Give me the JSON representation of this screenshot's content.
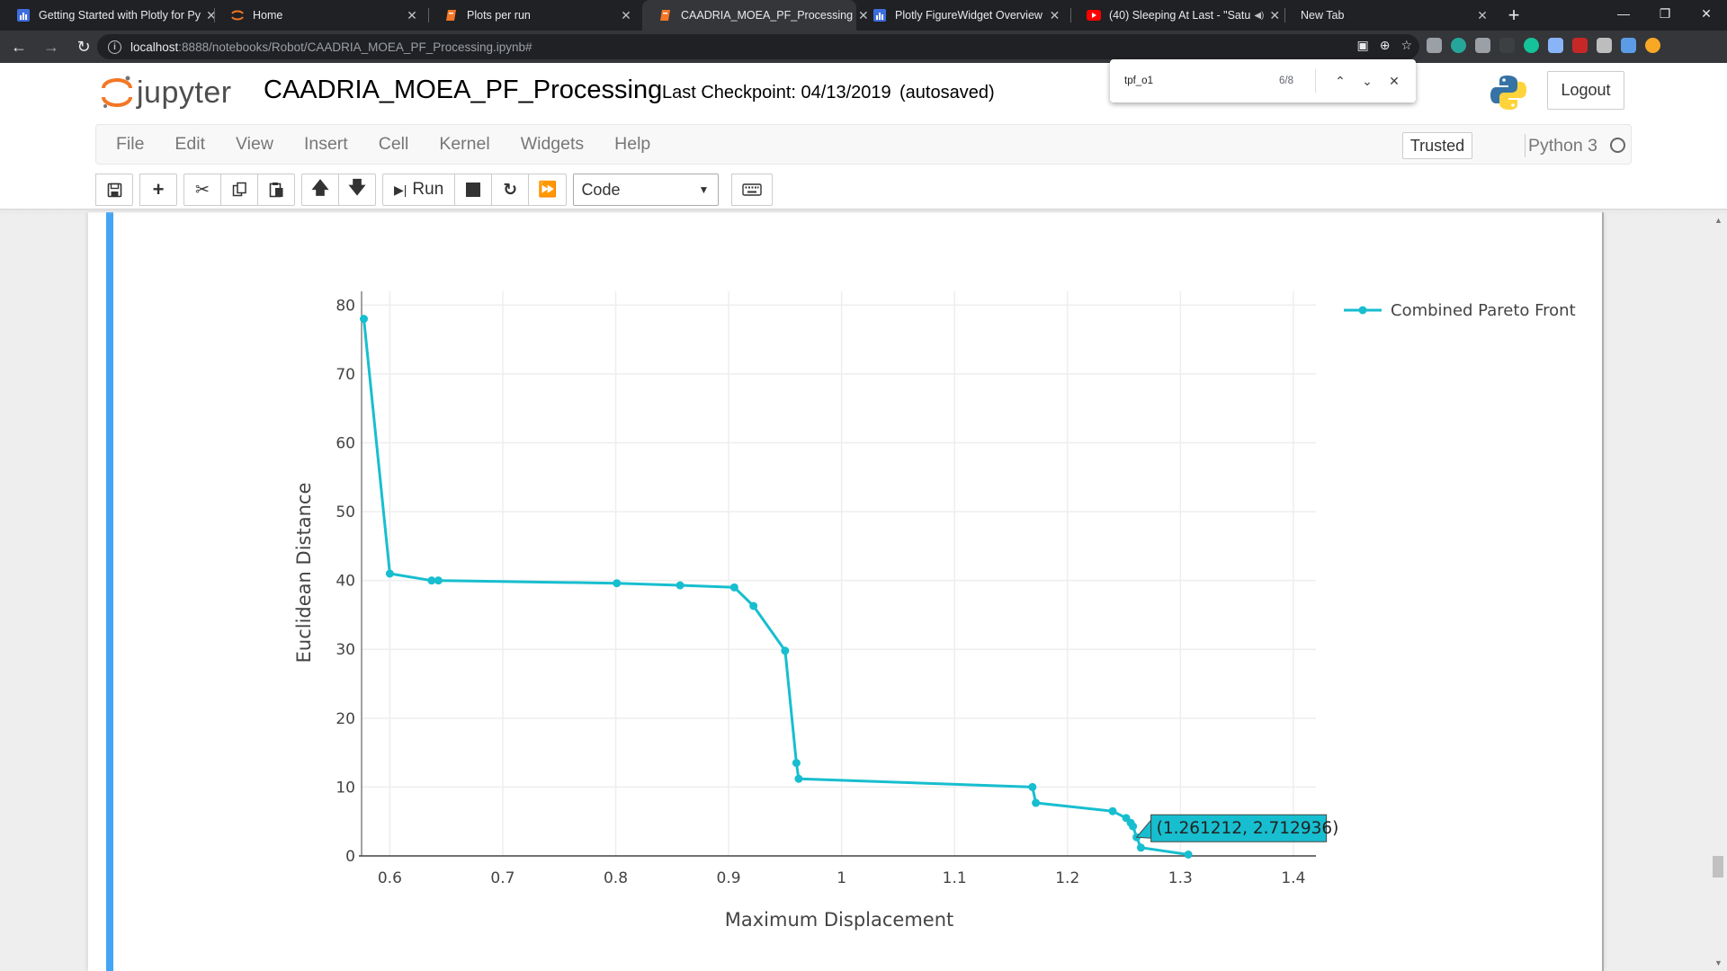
{
  "browser": {
    "tabs": [
      {
        "title": "Getting Started with Plotly for Py",
        "icon": "plotly-icon",
        "active": false
      },
      {
        "title": "Home",
        "icon": "jupyter-icon",
        "active": false
      },
      {
        "title": "Plots per run",
        "icon": "notebook-icon",
        "active": false
      },
      {
        "title": "CAADRIA_MOEA_PF_Processing",
        "icon": "notebook-icon",
        "active": true
      },
      {
        "title": "Plotly FigureWidget Overview",
        "icon": "plotly-icon",
        "active": false
      },
      {
        "title": "(40) Sleeping At Last - \"Satu",
        "icon": "youtube-icon",
        "active": false,
        "muted": true
      },
      {
        "title": "New Tab",
        "icon": "",
        "active": false
      }
    ],
    "url_host": "localhost",
    "url_rest": ":8888/notebooks/Robot/CAADRIA_MOEA_PF_Processing.ipynb#"
  },
  "find_bar": {
    "query": "tpf_o1",
    "count": "6/8"
  },
  "jupyter": {
    "logo_text": "jupyter",
    "notebook_name": "CAADRIA_MOEA_PF_Processing",
    "checkpoint": "Last Checkpoint: 04/13/2019",
    "autosave": "(autosaved)",
    "logout_label": "Logout",
    "menu": [
      "File",
      "Edit",
      "View",
      "Insert",
      "Cell",
      "Kernel",
      "Widgets",
      "Help"
    ],
    "trusted_label": "Trusted",
    "kernel_name": "Python 3",
    "run_label": "Run",
    "cell_type": "Code"
  },
  "colors": {
    "series": "#17becf",
    "cell_bar": "#42a5f5"
  },
  "chart_data": {
    "type": "line",
    "xlabel": "Maximum Displacement",
    "ylabel": "Euclidean Distance",
    "xlim": [
      0.575,
      1.42
    ],
    "ylim": [
      0,
      82
    ],
    "xticks": [
      0.6,
      0.7,
      0.8,
      0.9,
      1,
      1.1,
      1.2,
      1.3,
      1.4
    ],
    "yticks": [
      0,
      10,
      20,
      30,
      40,
      50,
      60,
      70,
      80
    ],
    "grid": true,
    "legend_position": "top-right",
    "series": [
      {
        "name": "Combined Pareto Front",
        "mode": "lines+markers",
        "x": [
          0.577,
          0.6,
          0.637,
          0.643,
          0.801,
          0.857,
          0.905,
          0.922,
          0.95,
          0.96,
          0.962,
          1.169,
          1.172,
          1.24,
          1.252,
          1.256,
          1.258,
          1.261212,
          1.265,
          1.307
        ],
        "y": [
          78.0,
          41.0,
          40.0,
          40.0,
          39.6,
          39.3,
          39.0,
          36.3,
          29.8,
          13.5,
          11.2,
          10.0,
          7.7,
          6.5,
          5.5,
          4.8,
          4.3,
          2.712936,
          1.2,
          0.2
        ]
      }
    ],
    "hover_label": "(1.261212, 2.712936)"
  }
}
